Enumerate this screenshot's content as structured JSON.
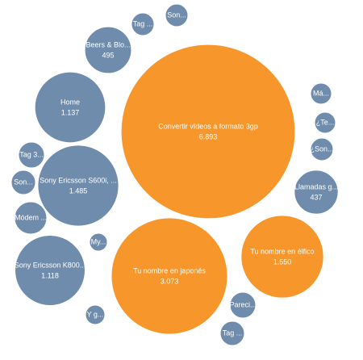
{
  "chart_data": {
    "type": "bubble",
    "categories": [
      "Convertir vídeos a formato  3gp",
      "Tu nombre en japonés",
      "Tu nombre en élfico",
      "Sony Ericsson S600i, ...",
      "Home",
      "Sony Ericsson K800...",
      "Beers & Blo...",
      "Llamadas g...",
      "Tag ...",
      "Son...",
      "Má...",
      "¿Te...",
      "¿Son...",
      "Tag 3...",
      "Son...",
      "Módem ...",
      "My...",
      "Y g...",
      "Pareci...",
      "Tag ..."
    ],
    "values": [
      6893,
      3073,
      1550,
      1485,
      1137,
      1118,
      495,
      437,
      116,
      116,
      100,
      100,
      116,
      151,
      133,
      237,
      72,
      85,
      151,
      133
    ],
    "value_labels": [
      "6.893",
      "3.073",
      "1.550",
      "1.485",
      "1.137",
      "1.118",
      "495",
      "437",
      null,
      null,
      null,
      null,
      null,
      null,
      null,
      null,
      null,
      null,
      null,
      null
    ],
    "colors": [
      "#f7962a",
      "#f7962a",
      "#f7962a",
      "#6f8cad",
      "#6f8cad",
      "#6f8cad",
      "#6f8cad",
      "#6f8cad",
      "#6f8cad",
      "#6f8cad",
      "#6f8cad",
      "#6f8cad",
      "#6f8cad",
      "#6f8cad",
      "#6f8cad",
      "#6f8cad",
      "#6f8cad",
      "#6f8cad",
      "#6f8cad",
      "#6f8cad"
    ]
  }
}
